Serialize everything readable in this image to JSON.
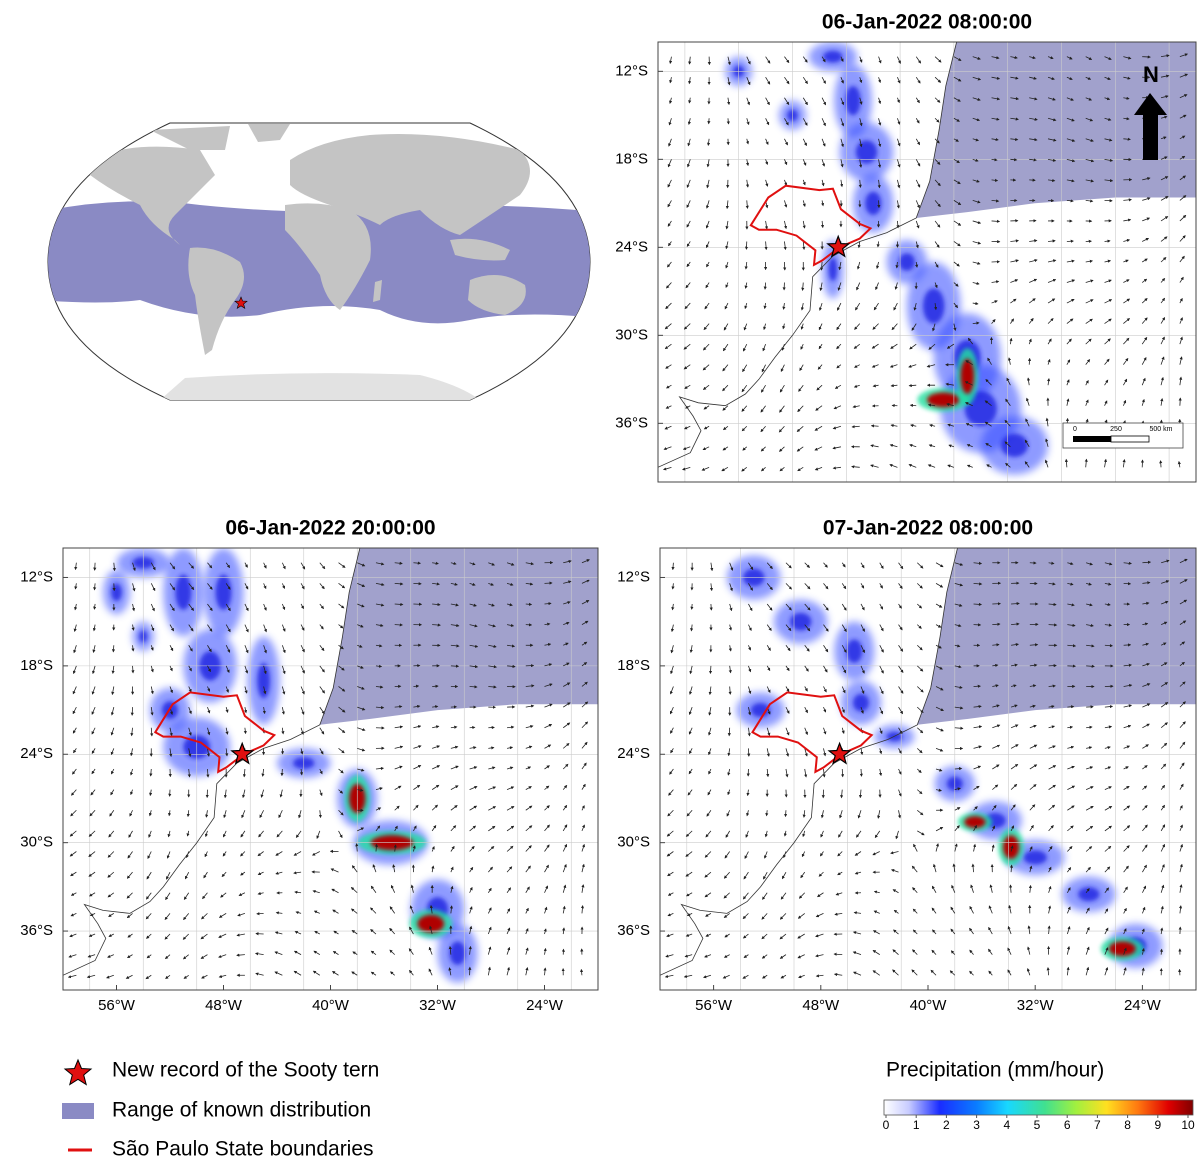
{
  "panels": [
    {
      "title": "06-Jan-2022 08:00:00",
      "lat_labels": [
        {
          "value": -12,
          "label": "12°S"
        },
        {
          "value": -18,
          "label": "18°S"
        },
        {
          "value": -24,
          "label": "24°S"
        },
        {
          "value": -30,
          "label": "30°S"
        },
        {
          "value": -36,
          "label": "36°S"
        }
      ]
    },
    {
      "title": "06-Jan-2022 20:00:00",
      "lat_labels": [
        {
          "value": -12,
          "label": "12°S"
        },
        {
          "value": -18,
          "label": "18°S"
        },
        {
          "value": -24,
          "label": "24°S"
        },
        {
          "value": -30,
          "label": "30°S"
        },
        {
          "value": -36,
          "label": "36°S"
        }
      ],
      "lon_labels": [
        {
          "value": -56,
          "label": "56°W"
        },
        {
          "value": -48,
          "label": "48°W"
        },
        {
          "value": -40,
          "label": "40°W"
        },
        {
          "value": -32,
          "label": "32°W"
        },
        {
          "value": -24,
          "label": "24°W"
        }
      ]
    },
    {
      "title": "07-Jan-2022 08:00:00",
      "lat_labels": [
        {
          "value": -12,
          "label": "12°S"
        },
        {
          "value": -18,
          "label": "18°S"
        },
        {
          "value": -24,
          "label": "24°S"
        },
        {
          "value": -30,
          "label": "30°S"
        },
        {
          "value": -36,
          "label": "36°S"
        }
      ],
      "lon_labels": [
        {
          "value": -56,
          "label": "56°W"
        },
        {
          "value": -48,
          "label": "48°W"
        },
        {
          "value": -40,
          "label": "40°W"
        },
        {
          "value": -32,
          "label": "32°W"
        },
        {
          "value": -24,
          "label": "24°W"
        }
      ]
    }
  ],
  "north_arrow": {
    "label": "N"
  },
  "scale_bar": {
    "labels": [
      "0",
      "250",
      "500 km"
    ]
  },
  "legend": [
    {
      "label": "New record of the Sooty tern"
    },
    {
      "label": "Range of known distribution"
    },
    {
      "label": "São Paulo State boundaries"
    }
  ],
  "colorbar": {
    "title": "Precipitation  (mm/hour)",
    "ticks": [
      0,
      1,
      2,
      3,
      4,
      5,
      6,
      7,
      8,
      9,
      10
    ]
  }
}
